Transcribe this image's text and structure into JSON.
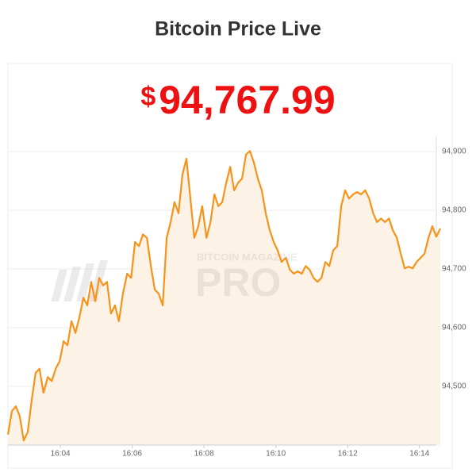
{
  "header": {
    "title": "Bitcoin Price Live"
  },
  "chart_data": {
    "type": "area",
    "price_symbol": "$",
    "price": "94,767.99",
    "watermark": [
      "BITCOIN MAGAZINE",
      "PRO"
    ],
    "color": "#f7931a",
    "fill": "#fdf2e6",
    "grid": true,
    "x": [
      962.54,
      962.65,
      962.76,
      962.87,
      962.98,
      963.09,
      963.2,
      963.31,
      963.42,
      963.53,
      963.65,
      963.76,
      963.87,
      963.98,
      964.09,
      964.2,
      964.31,
      964.42,
      964.53,
      964.64,
      964.75,
      964.86,
      964.97,
      965.08,
      965.19,
      965.3,
      965.41,
      965.52,
      965.63,
      965.74,
      965.86,
      965.97,
      966.08,
      966.19,
      966.3,
      966.41,
      966.52,
      966.63,
      966.74,
      966.85,
      966.96,
      967.07,
      967.18,
      967.29,
      967.4,
      967.51,
      967.62,
      967.73,
      967.84,
      967.95,
      968.07,
      968.18,
      968.29,
      968.4,
      968.51,
      968.62,
      968.73,
      968.84,
      968.95,
      969.06,
      969.17,
      969.28,
      969.39,
      969.5,
      969.61,
      969.72,
      969.83,
      969.94,
      970.05,
      970.16,
      970.28,
      970.39,
      970.5,
      970.61,
      970.72,
      970.83,
      970.94,
      971.05,
      971.16,
      971.27,
      971.38,
      971.49,
      971.6,
      971.71,
      971.82,
      971.93,
      972.04,
      972.15,
      972.26,
      972.37,
      972.49,
      972.6,
      972.71,
      972.82,
      972.93,
      973.04,
      973.15,
      973.26,
      973.37,
      973.48,
      973.59,
      973.7,
      973.81,
      973.92,
      974.03,
      974.14,
      974.25,
      974.36,
      974.47,
      974.58
    ],
    "values": [
      94418,
      94458,
      94466,
      94449,
      94408,
      94422,
      94476,
      94523,
      94530,
      94489,
      94516,
      94509,
      94530,
      94543,
      94577,
      94570,
      94611,
      94591,
      94618,
      94651,
      94638,
      94678,
      94645,
      94685,
      94672,
      94678,
      94624,
      94638,
      94611,
      94658,
      94692,
      94685,
      94746,
      94739,
      94759,
      94753,
      94705,
      94665,
      94658,
      94638,
      94753,
      94780,
      94814,
      94795,
      94861,
      94888,
      94820,
      94753,
      94773,
      94807,
      94753,
      94780,
      94827,
      94807,
      94814,
      94847,
      94874,
      94834,
      94847,
      94854,
      94895,
      94901,
      94881,
      94854,
      94834,
      94795,
      94766,
      94746,
      94732,
      94712,
      94719,
      94699,
      94692,
      94696,
      94692,
      94705,
      94699,
      94685,
      94678,
      94685,
      94712,
      94705,
      94732,
      94739,
      94807,
      94834,
      94820,
      94827,
      94831,
      94827,
      94834,
      94820,
      94795,
      94780,
      94786,
      94780,
      94786,
      94766,
      94753,
      94726,
      94701,
      94704,
      94701,
      94712,
      94719,
      94726,
      94753,
      94773,
      94755,
      94769
    ],
    "xlim": [
      962.54,
      974.58
    ],
    "xticks": [
      {
        "value": 964,
        "label": "16:04"
      },
      {
        "value": 966,
        "label": "16:06"
      },
      {
        "value": 968,
        "label": "16:08"
      },
      {
        "value": 970,
        "label": "16:10"
      },
      {
        "value": 972,
        "label": "16:12"
      },
      {
        "value": 974,
        "label": "16:14"
      }
    ],
    "ylim": [
      94400,
      94915
    ],
    "yticks": [
      {
        "value": 94500,
        "label": "94,500"
      },
      {
        "value": 94600,
        "label": "94,600"
      },
      {
        "value": 94700,
        "label": "94,700"
      },
      {
        "value": 94800,
        "label": "94,800"
      },
      {
        "value": 94900,
        "label": "94,900"
      }
    ]
  }
}
